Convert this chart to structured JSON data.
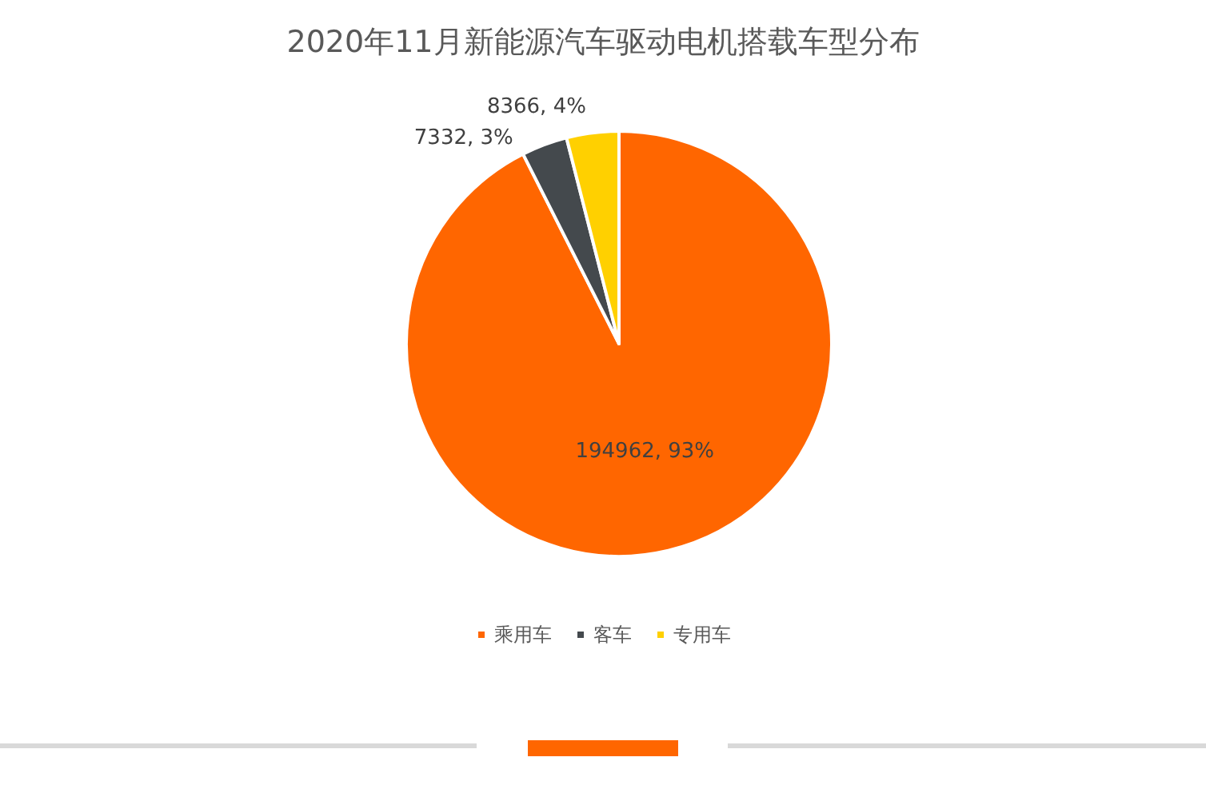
{
  "chart_data": {
    "type": "pie",
    "title": "2020年11月新能源汽车驱动电机搭载车型分布",
    "categories": [
      "乘用车",
      "客车",
      "专用车"
    ],
    "values": [
      194962,
      7332,
      8366
    ],
    "colors": [
      "#ff6600",
      "#44494d",
      "#ffd000"
    ],
    "value_labels": [
      "194962, 93%",
      "7332, 3%",
      "8366, 4%"
    ],
    "legend": "bottom"
  }
}
